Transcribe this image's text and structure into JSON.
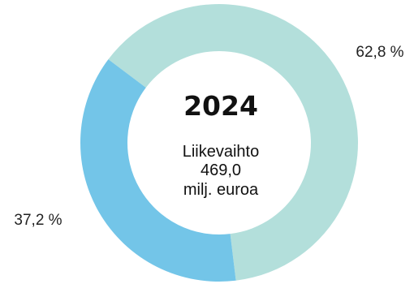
{
  "chart_data": {
    "type": "pie",
    "center_title": "2024",
    "center_lines": [
      "Liikevaihto",
      "469,0",
      "milj. euroa"
    ],
    "slices": [
      {
        "value": 62.8,
        "label": "62,8 %",
        "color": "#b3dfdb"
      },
      {
        "value": 37.2,
        "label": "37,2 %",
        "color": "#73c5e8"
      }
    ]
  }
}
